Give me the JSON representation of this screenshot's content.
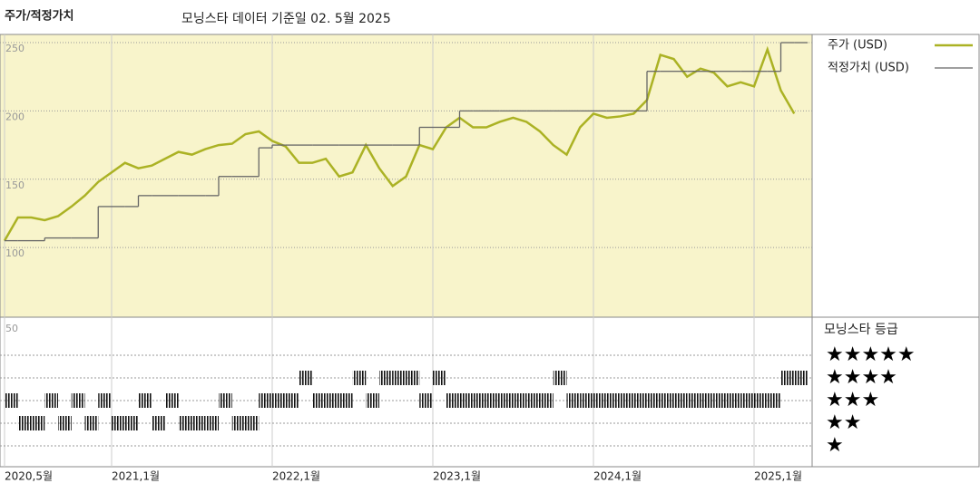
{
  "chart_data": {
    "type": "line",
    "title": "주가/적정가치",
    "subtitle": "모닝스타 데이터 기준일 02. 5월 2025",
    "x": [
      "2020-05",
      "2020-06",
      "2020-07",
      "2020-08",
      "2020-09",
      "2020-10",
      "2020-11",
      "2020-12",
      "2021-01",
      "2021-02",
      "2021-03",
      "2021-04",
      "2021-05",
      "2021-06",
      "2021-07",
      "2021-08",
      "2021-09",
      "2021-10",
      "2021-11",
      "2021-12",
      "2022-01",
      "2022-02",
      "2022-03",
      "2022-04",
      "2022-05",
      "2022-06",
      "2022-07",
      "2022-08",
      "2022-09",
      "2022-10",
      "2022-11",
      "2022-12",
      "2023-01",
      "2023-02",
      "2023-03",
      "2023-04",
      "2023-05",
      "2023-06",
      "2023-07",
      "2023-08",
      "2023-09",
      "2023-10",
      "2023-11",
      "2023-12",
      "2024-01",
      "2024-02",
      "2024-03",
      "2024-04",
      "2024-05",
      "2024-06",
      "2024-07",
      "2024-08",
      "2024-09",
      "2024-10",
      "2024-11",
      "2024-12",
      "2025-01",
      "2025-02",
      "2025-03",
      "2025-04"
    ],
    "series": [
      {
        "name": "주가 (USD)",
        "color": "#abb224",
        "values": [
          105,
          122,
          122,
          120,
          123,
          130,
          138,
          148,
          155,
          162,
          158,
          160,
          165,
          170,
          168,
          172,
          175,
          176,
          183,
          185,
          178,
          174,
          162,
          162,
          165,
          152,
          155,
          175,
          158,
          145,
          152,
          175,
          172,
          188,
          195,
          188,
          188,
          192,
          195,
          192,
          185,
          175,
          168,
          188,
          198,
          195,
          196,
          198,
          208,
          241,
          238,
          225,
          231,
          228,
          218,
          221,
          218,
          245,
          215,
          198
        ]
      },
      {
        "name": "적정가치 (USD)",
        "color": "#666666",
        "step": true,
        "values": [
          105,
          105,
          105,
          107,
          107,
          107,
          107,
          130,
          130,
          130,
          138,
          138,
          138,
          138,
          138,
          138,
          152,
          152,
          152,
          173,
          175,
          175,
          175,
          175,
          175,
          175,
          175,
          175,
          175,
          175,
          175,
          188,
          188,
          188,
          200,
          200,
          200,
          200,
          200,
          200,
          200,
          200,
          200,
          200,
          200,
          200,
          200,
          200,
          229,
          229,
          229,
          229,
          229,
          229,
          229,
          229,
          229,
          229,
          250,
          250
        ]
      }
    ],
    "ylim": [
      49,
      256
    ],
    "yticks": [
      100,
      150,
      200,
      250
    ],
    "xticks": [
      {
        "value": "2020-05",
        "label": "2020,5월"
      },
      {
        "value": "2021-01",
        "label": "2021,1월"
      },
      {
        "value": "2022-01",
        "label": "2022,1월"
      },
      {
        "value": "2023-01",
        "label": "2023,1월"
      },
      {
        "value": "2024-01",
        "label": "2024,1월"
      },
      {
        "value": "2025-01",
        "label": "2025,1월"
      }
    ],
    "grid": true,
    "rating": {
      "title": "모닝스타 등급",
      "axis_label": "50",
      "labels": [
        "★★★★★",
        "★★★★",
        "★★★",
        "★★",
        "★"
      ],
      "levels": [
        5,
        4,
        3,
        2,
        1
      ],
      "values": [
        3,
        2,
        2,
        3,
        2,
        3,
        2,
        3,
        2,
        2,
        3,
        2,
        3,
        2,
        2,
        2,
        3,
        2,
        2,
        3,
        3,
        3,
        4,
        3,
        3,
        3,
        4,
        3,
        4,
        4,
        4,
        3,
        4,
        3,
        3,
        3,
        3,
        3,
        3,
        3,
        3,
        4,
        3,
        3,
        3,
        3,
        3,
        3,
        3,
        3,
        3,
        3,
        3,
        3,
        3,
        3,
        3,
        3,
        4,
        4
      ]
    }
  }
}
